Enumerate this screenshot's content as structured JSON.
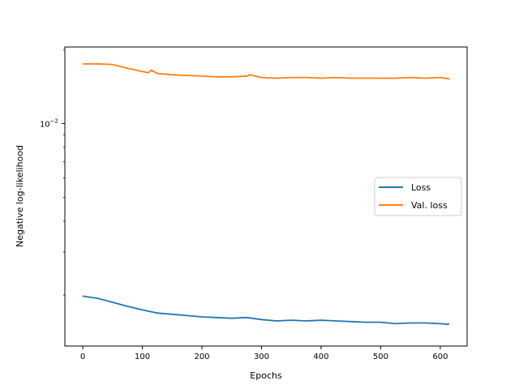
{
  "chart_data": {
    "type": "line",
    "title": "",
    "xlabel": "Epochs",
    "ylabel": "Negative log-likelihood",
    "xlim": [
      -30,
      645
    ],
    "ylim": [
      0.00124,
      0.0205
    ],
    "yscale": "log",
    "grid": false,
    "legend_position": "center-right",
    "x_ticks": [
      0,
      100,
      200,
      300,
      400,
      500,
      600
    ],
    "y_ticks": [
      {
        "value": 0.01,
        "base": "10",
        "exponent": "−2"
      }
    ],
    "series": [
      {
        "name": "Loss",
        "color": "#1f77b4",
        "x": [
          0,
          25,
          50,
          75,
          100,
          125,
          150,
          175,
          200,
          225,
          250,
          275,
          300,
          325,
          350,
          375,
          400,
          425,
          450,
          475,
          500,
          525,
          550,
          575,
          600,
          615
        ],
        "y": [
          0.00198,
          0.00194,
          0.00187,
          0.0018,
          0.00174,
          0.00169,
          0.00167,
          0.00165,
          0.00163,
          0.00162,
          0.00161,
          0.00162,
          0.00159,
          0.00157,
          0.00158,
          0.00157,
          0.00158,
          0.00157,
          0.00156,
          0.00155,
          0.00155,
          0.00153,
          0.00154,
          0.00154,
          0.00153,
          0.00152
        ]
      },
      {
        "name": "Val. loss",
        "color": "#ff7f0e",
        "x": [
          0,
          25,
          50,
          75,
          100,
          110,
          115,
          125,
          150,
          175,
          200,
          225,
          250,
          275,
          280,
          300,
          325,
          350,
          375,
          400,
          425,
          450,
          475,
          500,
          525,
          550,
          575,
          600,
          615
        ],
        "y": [
          0.0175,
          0.0175,
          0.0174,
          0.0168,
          0.0163,
          0.0161,
          0.0165,
          0.016,
          0.0158,
          0.0157,
          0.0156,
          0.0155,
          0.0155,
          0.0156,
          0.0158,
          0.0154,
          0.0153,
          0.0154,
          0.0154,
          0.0153,
          0.0154,
          0.0153,
          0.0153,
          0.0153,
          0.0153,
          0.0154,
          0.0153,
          0.0154,
          0.0152
        ]
      }
    ]
  }
}
